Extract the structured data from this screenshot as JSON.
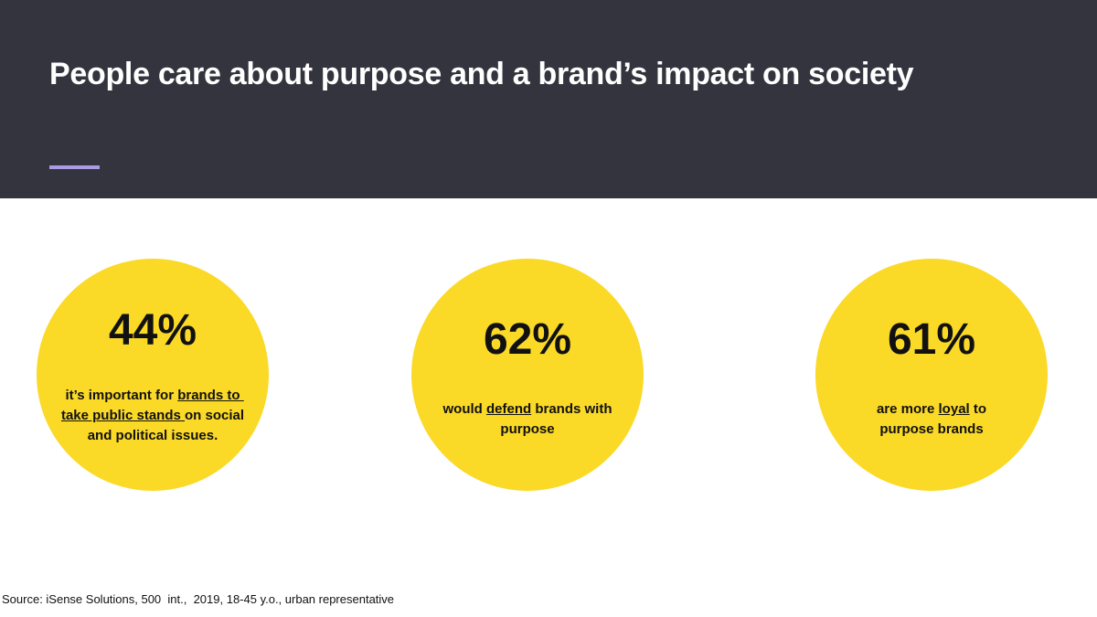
{
  "header": {
    "title": "People care about purpose and a brand’s impact on society"
  },
  "stats": [
    {
      "figure": "44%",
      "before": "it’s important for ",
      "underlined": "brands to take public stands ",
      "after": "on social and political issues."
    },
    {
      "figure": "62%",
      "before": "would ",
      "underlined": "defend",
      "after": " brands with purpose"
    },
    {
      "figure": "61%",
      "before": "are more ",
      "underlined": "loyal",
      "after": " to purpose brands"
    }
  ],
  "footer": {
    "source": "Source: iSense Solutions, 500  int.,  2019, 18-45 y.o., urban representative"
  }
}
